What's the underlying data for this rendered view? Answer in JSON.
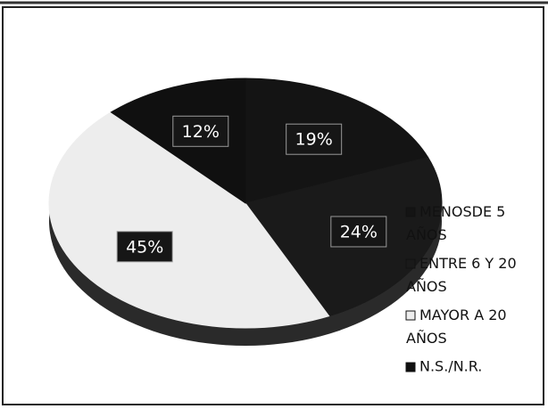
{
  "chart_data": {
    "type": "pie",
    "categories": [
      "MENOSDE 5 AÑOS",
      "ENTRE 6 Y 20 AÑOS",
      "MAYOR A 20 AÑOS",
      "N.S./N.R."
    ],
    "values": [
      19,
      24,
      45,
      12
    ],
    "value_labels": [
      "19%",
      "24%",
      "45%",
      "12%"
    ],
    "colors": [
      "#141414",
      "#1a1a1a",
      "#ededed",
      "#101010"
    ],
    "legend": "right"
  }
}
